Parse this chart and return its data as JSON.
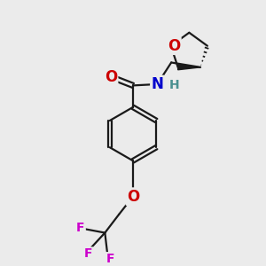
{
  "background_color": "#ebebeb",
  "bond_color": "#1a1a1a",
  "atom_colors": {
    "O": "#cc0000",
    "N": "#0000cc",
    "F": "#cc00cc",
    "H": "#4a9090",
    "C": "#1a1a1a"
  },
  "font_size_atom": 12,
  "font_size_small": 10,
  "line_width": 1.6,
  "fig_size": [
    3.0,
    3.0
  ],
  "dpi": 100
}
